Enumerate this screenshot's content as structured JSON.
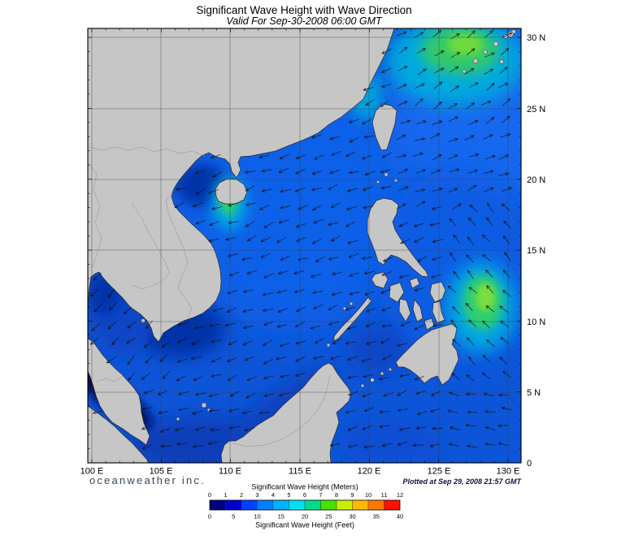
{
  "header": {
    "title": "Significant Wave Height with Wave Direction",
    "subtitle": "Valid For Sep-30-2008 06:00 GMT"
  },
  "axes": {
    "x_ticks": [
      "100 E",
      "105 E",
      "110 E",
      "115 E",
      "120 E",
      "125 E",
      "130 E"
    ],
    "y_ticks": [
      "0",
      "5 N",
      "10 N",
      "15 N",
      "20 N",
      "25 N",
      "30 N"
    ]
  },
  "footer": {
    "branding": "oceanweather inc.",
    "plotted": "Plotted at Sep 29, 2008 21:57 GMT"
  },
  "legend": {
    "meters_label": "Significant Wave Height (Meters)",
    "feet_label": "Significant Wave Height (Feet)",
    "meters_ticks": [
      "0",
      "1",
      "2",
      "3",
      "4",
      "5",
      "6",
      "7",
      "8",
      "9",
      "10",
      "11",
      "12"
    ],
    "feet_ticks": [
      "0",
      "5",
      "10",
      "15",
      "20",
      "25",
      "30",
      "35",
      "40"
    ],
    "colors": [
      "#000080",
      "#0000d0",
      "#0040ff",
      "#0080ff",
      "#00b4ff",
      "#00e0f0",
      "#00dd88",
      "#44e400",
      "#c8f000",
      "#ffbb00",
      "#ff7700",
      "#ff1100"
    ]
  },
  "map": {
    "sea_color": "#0d55d8",
    "land_color": "#c6c6c6",
    "arrow_color": "#101010"
  }
}
